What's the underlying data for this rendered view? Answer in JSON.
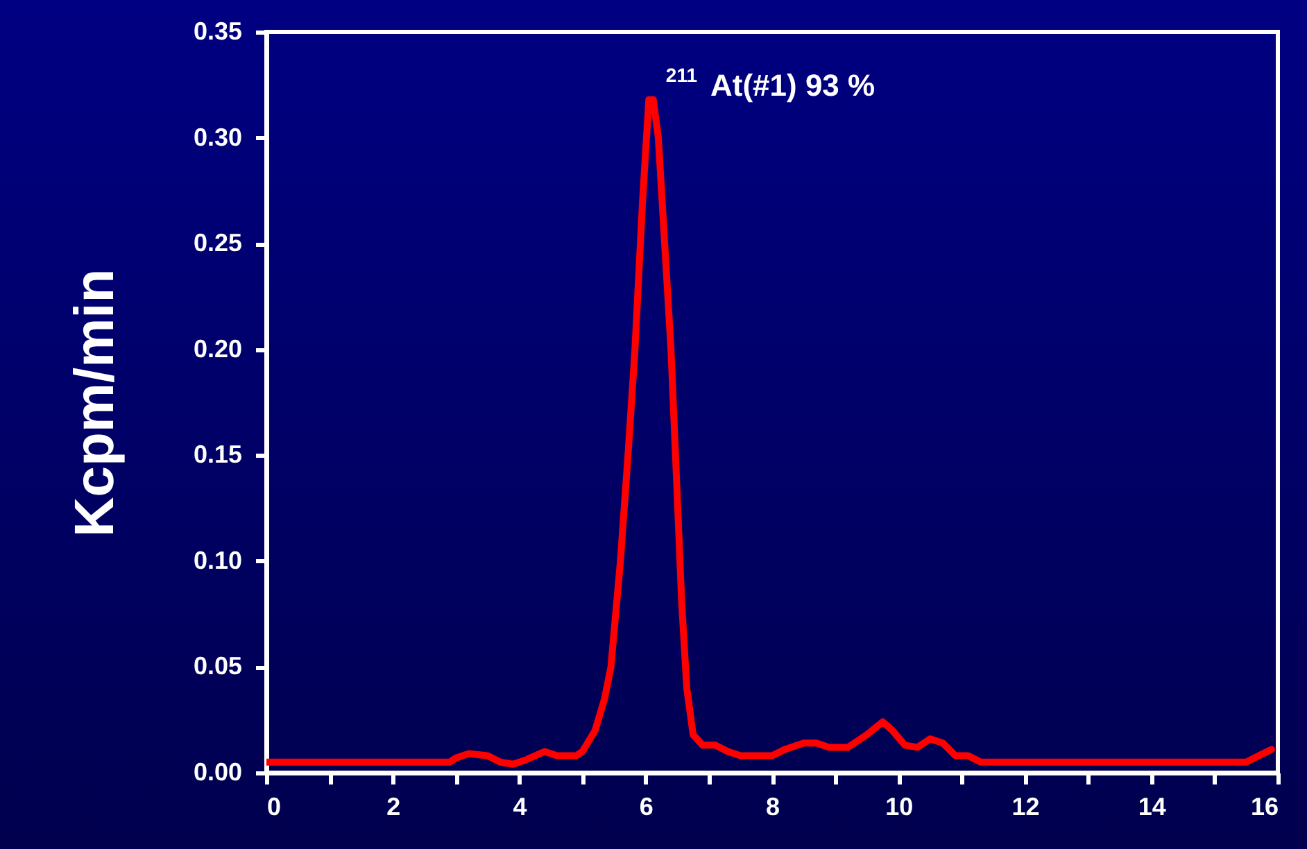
{
  "chart_data": {
    "type": "line",
    "ylabel": "Kcpm/min",
    "x": [
      0,
      1,
      2,
      2.9,
      3.0,
      3.2,
      3.5,
      3.7,
      3.9,
      4.1,
      4.4,
      4.6,
      4.9,
      5.0,
      5.2,
      5.35,
      5.45,
      5.6,
      5.72,
      5.83,
      5.95,
      6.05,
      6.12,
      6.2,
      6.3,
      6.4,
      6.5,
      6.57,
      6.65,
      6.75,
      6.9,
      7.1,
      7.3,
      7.5,
      8.0,
      8.2,
      8.5,
      8.7,
      8.9,
      9.2,
      9.5,
      9.75,
      9.9,
      10.1,
      10.3,
      10.5,
      10.7,
      10.9,
      11.1,
      11.3,
      12,
      13,
      14,
      15,
      15.5,
      15.7,
      15.9
    ],
    "series": [
      {
        "color": "#ff0000",
        "values": [
          0.005,
          0.005,
          0.005,
          0.005,
          0.007,
          0.009,
          0.008,
          0.005,
          0.004,
          0.006,
          0.01,
          0.008,
          0.008,
          0.01,
          0.02,
          0.035,
          0.05,
          0.1,
          0.15,
          0.2,
          0.27,
          0.318,
          0.318,
          0.3,
          0.25,
          0.2,
          0.13,
          0.08,
          0.04,
          0.018,
          0.013,
          0.013,
          0.01,
          0.008,
          0.008,
          0.011,
          0.014,
          0.014,
          0.012,
          0.012,
          0.018,
          0.024,
          0.02,
          0.013,
          0.012,
          0.016,
          0.014,
          0.008,
          0.008,
          0.005,
          0.005,
          0.005,
          0.005,
          0.005,
          0.005,
          0.008,
          0.011
        ]
      }
    ],
    "xlim": [
      0,
      16
    ],
    "ylim": [
      0,
      0.35
    ],
    "xticks": [
      0,
      {
        "value": 1,
        "label": null
      },
      2,
      {
        "value": 3,
        "label": null
      },
      4,
      {
        "value": 5,
        "label": null
      },
      6,
      {
        "value": 7,
        "label": null
      },
      8,
      {
        "value": 9,
        "label": null
      },
      10,
      {
        "value": 11,
        "label": null
      },
      12,
      {
        "value": 13,
        "label": null
      },
      14,
      {
        "value": 15,
        "label": null
      },
      16
    ],
    "yticks": [
      {
        "value": 0,
        "label": "0.00"
      },
      {
        "value": 0.05,
        "label": "0.05"
      },
      {
        "value": 0.1,
        "label": "0.10"
      },
      {
        "value": 0.15,
        "label": "0.15"
      },
      {
        "value": 0.2,
        "label": "0.20"
      },
      {
        "value": 0.25,
        "label": "0.25"
      },
      {
        "value": 0.3,
        "label": "0.30"
      },
      {
        "value": 0.35,
        "label": "0.35"
      }
    ],
    "annotations": [
      {
        "text": "$^{211}$ At(#1) 93 %",
        "x": 6.1,
        "y": 0.32
      }
    ],
    "grid": false,
    "marker": "none",
    "line_style": "solid"
  }
}
